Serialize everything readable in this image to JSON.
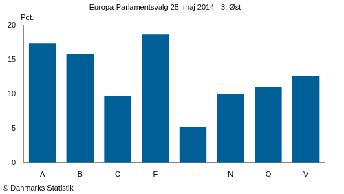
{
  "chart_data": {
    "type": "bar",
    "title": "Europa-Parlamentsvalg 25. maj 2014 - 3. Øst",
    "y_label": "Pct.",
    "source": "© Danmarks Statistik",
    "categories": [
      "A",
      "B",
      "C",
      "F",
      "I",
      "N",
      "O",
      "V"
    ],
    "values": [
      17.4,
      15.8,
      9.7,
      18.7,
      5.2,
      10.1,
      11.0,
      12.6
    ],
    "color": "#005f96",
    "ylim": [
      0,
      20
    ],
    "yticks": [
      0,
      5,
      10,
      15,
      20
    ],
    "grid": false
  }
}
